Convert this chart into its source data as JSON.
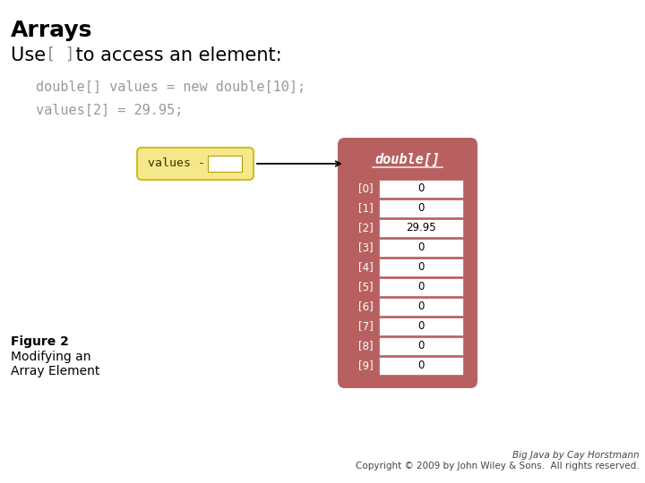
{
  "title": "Arrays",
  "code_line1": "double[] values = new double[10];",
  "code_line2": "values[2] = 29.95;",
  "array_values": [
    "0",
    "0",
    "29.95",
    "0",
    "0",
    "0",
    "0",
    "0",
    "0",
    "0"
  ],
  "array_indices": [
    "[0]",
    "[1]",
    "[2]",
    "[3]",
    "[4]",
    "[5]",
    "[6]",
    "[7]",
    "[8]",
    "[9]"
  ],
  "array_header": "double[]",
  "values_label": "values -",
  "figure_label": "Figure 2",
  "figure_desc1": "Modifying an",
  "figure_desc2": "Array Element",
  "copyright1": "Big Java by Cay Horstmann",
  "copyright2": "Copyright © 2009 by John Wiley & Sons.  All rights reserved.",
  "bg_color": "#ffffff",
  "title_color": "#000000",
  "code_color": "#999999",
  "array_bg_color": "#b86060",
  "cell_bg_color": "#ffffff",
  "values_box_fill": "#f5e88a",
  "values_box_edge": "#c8b000",
  "arrow_color": "#000000",
  "index_text_color": "#222222",
  "cell_value_color": "#000000",
  "header_text_color": "#ffffff",
  "subtitle_bracket_color": "#888888"
}
